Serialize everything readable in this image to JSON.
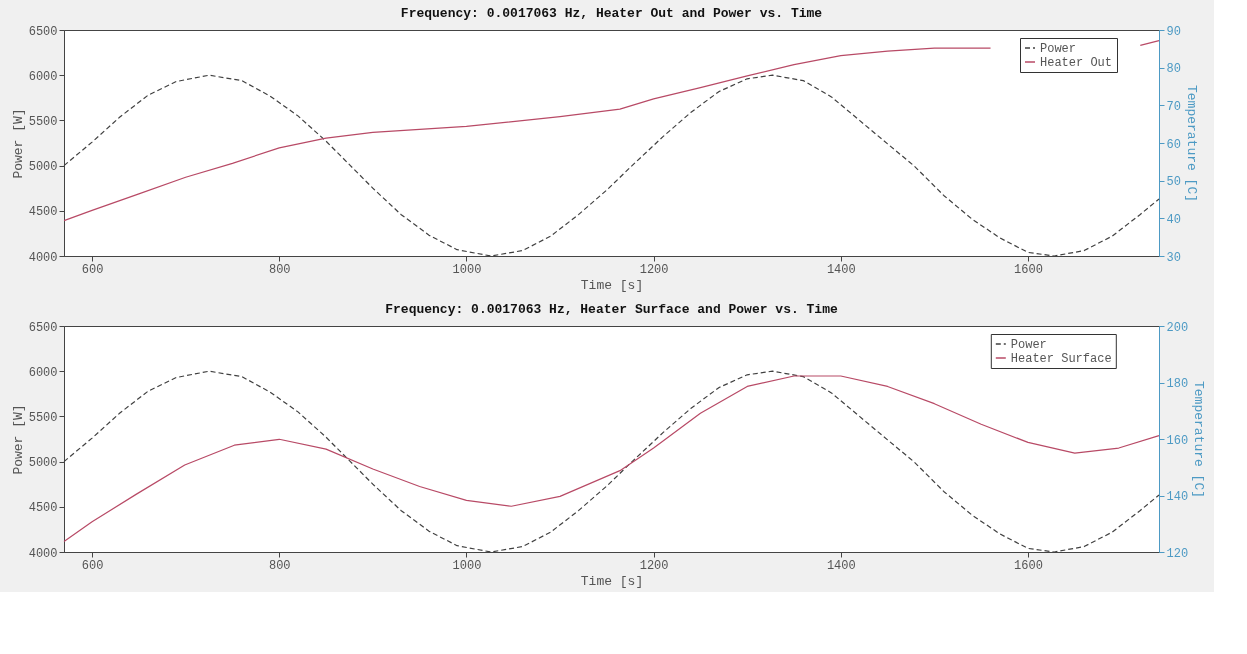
{
  "chart_data": [
    {
      "type": "line",
      "title": "Frequency: 0.0017063 Hz, Heater Out and Power vs. Time",
      "xlabel": "Time [s]",
      "ylabel": "Power [W]",
      "y2label": "Temperature [C]",
      "xlim": [
        570,
        1740
      ],
      "xticks": [
        600,
        800,
        1000,
        1200,
        1400,
        1600
      ],
      "ylim": [
        4000,
        6500
      ],
      "yticks": [
        4000,
        4500,
        5000,
        5500,
        6000,
        6500
      ],
      "y2lim": [
        30,
        90
      ],
      "y2ticks": [
        30,
        40,
        50,
        60,
        70,
        80,
        90
      ],
      "legend": "top right",
      "grid": false,
      "series": [
        {
          "name": "Power",
          "color": "#404040",
          "line_style": "dashed",
          "x": [
            570,
            600,
            630,
            660,
            690,
            725,
            760,
            790,
            820,
            850,
            876,
            900,
            930,
            960,
            990,
            1026,
            1060,
            1090,
            1120,
            1150,
            1177,
            1210,
            1240,
            1270,
            1300,
            1327,
            1360,
            1390,
            1420,
            1450,
            1478,
            1510,
            1540,
            1570,
            1600,
            1628,
            1660,
            1690,
            1720,
            1740
          ],
          "values": [
            5000,
            5260,
            5540,
            5780,
            5930,
            6000,
            5940,
            5770,
            5550,
            5270,
            5000,
            4750,
            4460,
            4230,
            4070,
            4000,
            4060,
            4220,
            4460,
            4730,
            5000,
            5320,
            5590,
            5820,
            5960,
            6000,
            5940,
            5760,
            5500,
            5240,
            5000,
            4670,
            4410,
            4200,
            4040,
            4000,
            4060,
            4220,
            4460,
            4630
          ]
        },
        {
          "name": "Heater Out",
          "color": "#b84a66",
          "line_style": "solid",
          "axis": "y2",
          "x": [
            570,
            600,
            650,
            700,
            750,
            800,
            850,
            900,
            1000,
            1100,
            1164,
            1200,
            1250,
            1300,
            1350,
            1400,
            1450,
            1500,
            1560,
            1640,
            1720,
            1740
          ],
          "values": [
            39.4,
            42.1,
            46.5,
            50.9,
            54.6,
            58.7,
            61.3,
            62.8,
            64.4,
            67.0,
            69.0,
            71.7,
            74.7,
            77.8,
            80.8,
            83.2,
            84.4,
            85.2,
            85.2,
            null,
            85.9,
            87.2
          ]
        }
      ]
    },
    {
      "type": "line",
      "title": "Frequency: 0.0017063 Hz, Heater Surface and Power vs. Time",
      "xlabel": "Time [s]",
      "ylabel": "Power [W]",
      "y2label": "Temperature [C]",
      "xlim": [
        570,
        1740
      ],
      "xticks": [
        600,
        800,
        1000,
        1200,
        1400,
        1600
      ],
      "ylim": [
        4000,
        6500
      ],
      "yticks": [
        4000,
        4500,
        5000,
        5500,
        6000,
        6500
      ],
      "y2lim": [
        120,
        200
      ],
      "y2ticks": [
        120,
        140,
        160,
        180,
        200
      ],
      "legend": "top right",
      "grid": false,
      "series": [
        {
          "name": "Power",
          "color": "#404040",
          "line_style": "dashed",
          "x": [
            570,
            600,
            630,
            660,
            690,
            725,
            760,
            790,
            820,
            850,
            876,
            900,
            930,
            960,
            990,
            1026,
            1060,
            1090,
            1120,
            1150,
            1177,
            1210,
            1240,
            1270,
            1300,
            1327,
            1360,
            1390,
            1420,
            1450,
            1478,
            1510,
            1540,
            1570,
            1600,
            1628,
            1660,
            1690,
            1720,
            1740
          ],
          "values": [
            5000,
            5260,
            5540,
            5780,
            5930,
            6000,
            5940,
            5770,
            5550,
            5270,
            5000,
            4750,
            4460,
            4230,
            4070,
            4000,
            4060,
            4220,
            4460,
            4730,
            5000,
            5320,
            5590,
            5820,
            5960,
            6000,
            5940,
            5760,
            5500,
            5240,
            5000,
            4670,
            4410,
            4200,
            4040,
            4000,
            4060,
            4220,
            4460,
            4630
          ]
        },
        {
          "name": "Heater Surface",
          "color": "#b84a66",
          "line_style": "solid",
          "axis": "y2",
          "x": [
            570,
            600,
            647,
            699,
            752,
            800,
            850,
            900,
            950,
            1000,
            1048,
            1100,
            1164,
            1200,
            1250,
            1300,
            1350,
            1400,
            1450,
            1500,
            1550,
            1600,
            1650,
            1697,
            1740
          ],
          "values": [
            123.7,
            130.7,
            140.4,
            150.8,
            157.8,
            159.9,
            156.4,
            149.4,
            143.2,
            138.3,
            136.2,
            139.7,
            148.8,
            156.8,
            169.1,
            178.6,
            182.3,
            182.3,
            178.6,
            172.5,
            165.2,
            158.8,
            155.0,
            156.8,
            161.2
          ]
        }
      ]
    }
  ]
}
